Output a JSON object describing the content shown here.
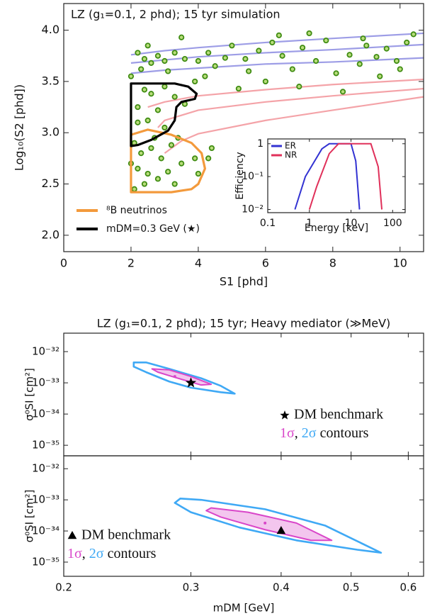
{
  "chart_data": [
    {
      "type": "scatter",
      "title": "LZ (g₁=0.1, 2 phd); 15 tyr simulation",
      "xlabel": "S1 [phd]",
      "ylabel": "Log₁₀(S2 [phd])",
      "xlim": [
        0,
        10.7
      ],
      "ylim": [
        1.84,
        4.26
      ],
      "xticks": [
        0,
        2,
        4,
        6,
        8,
        10
      ],
      "yticks": [
        {
          "value": 2,
          "label": "2.0"
        },
        2.5,
        {
          "value": 3,
          "label": "3.0"
        },
        3.5,
        {
          "value": 4,
          "label": "4.0"
        }
      ],
      "legend": "lower left",
      "bands": [
        {
          "color": "#9d9de6",
          "x": [
            2,
            3,
            4,
            6,
            8,
            10.7
          ],
          "values": [
            3.76,
            3.8,
            3.83,
            3.88,
            3.92,
            3.97
          ]
        },
        {
          "color": "#9d9de6",
          "x": [
            2,
            3,
            4,
            6,
            8,
            10.7
          ],
          "values": [
            3.68,
            3.71,
            3.74,
            3.78,
            3.81,
            3.86
          ]
        },
        {
          "color": "#9d9de6",
          "x": [
            2,
            3,
            4,
            6,
            8,
            10.7
          ],
          "values": [
            3.58,
            3.61,
            3.63,
            3.67,
            3.69,
            3.73
          ]
        },
        {
          "color": "#f4a3a8",
          "x": [
            2.5,
            3,
            4,
            6,
            8,
            10.7
          ],
          "values": [
            3.25,
            3.3,
            3.36,
            3.42,
            3.47,
            3.52
          ]
        },
        {
          "color": "#f4a3a8",
          "x": [
            2.8,
            3,
            4,
            6,
            8,
            10.7
          ],
          "values": [
            3.05,
            3.12,
            3.22,
            3.3,
            3.36,
            3.43
          ]
        },
        {
          "color": "#f4a3a8",
          "x": [
            3,
            3.5,
            4,
            6,
            8,
            10.7
          ],
          "values": [
            2.8,
            2.92,
            2.99,
            3.12,
            3.22,
            3.35
          ]
        }
      ],
      "points": {
        "color": "#3f8c12",
        "fill": "#b9dd7c",
        "x": [
          2.2,
          2.4,
          2.6,
          2.8,
          3.0,
          2.3,
          3.3,
          3.6,
          3.1,
          2.5,
          3.5,
          4.0,
          4.3,
          4.5,
          4.8,
          4.2,
          2.4,
          2.6,
          3.0,
          3.3,
          2.2,
          2.8,
          3.6,
          2.5,
          3.0,
          3.9,
          2.1,
          2.3,
          2.6,
          2.9,
          3.2,
          2.2,
          2.5,
          2.8,
          3.1,
          3.5,
          3.9,
          4.0,
          4.3,
          2.1,
          2.4,
          3.3,
          4.4,
          5.0,
          5.4,
          5.8,
          6.2,
          6.5,
          6.8,
          7.1,
          7.5,
          7.8,
          8.1,
          8.5,
          8.8,
          9.0,
          9.3,
          9.6,
          9.9,
          10.2,
          10.4,
          6.0,
          7.0,
          8.3,
          9.4,
          5.5,
          6.4,
          7.3,
          10.0,
          5.2,
          8.9,
          2.0,
          2.7,
          3.4,
          2.2,
          2.0
        ],
        "values": [
          3.78,
          3.72,
          3.68,
          3.75,
          3.7,
          3.62,
          3.78,
          3.72,
          3.6,
          3.85,
          3.93,
          3.7,
          3.78,
          3.65,
          3.73,
          3.55,
          3.42,
          3.38,
          3.45,
          3.35,
          3.25,
          3.22,
          3.28,
          3.12,
          3.05,
          3.5,
          2.9,
          2.8,
          2.85,
          2.75,
          2.88,
          2.65,
          2.6,
          2.55,
          2.62,
          2.7,
          2.75,
          2.6,
          2.75,
          2.45,
          2.5,
          2.5,
          2.85,
          3.85,
          3.72,
          3.8,
          3.88,
          3.75,
          3.62,
          3.83,
          3.7,
          3.9,
          3.58,
          3.76,
          3.67,
          3.85,
          3.74,
          3.82,
          3.7,
          3.88,
          3.96,
          3.5,
          3.45,
          3.4,
          3.55,
          3.6,
          3.95,
          3.97,
          3.62,
          3.43,
          3.92,
          2.7,
          2.95,
          2.95,
          3.1,
          3.55
        ]
      },
      "series": [
        {
          "name": "⁸B neutrinos",
          "color": "#f39a3c",
          "x": [
            2,
            2,
            2.5,
            3.2,
            3.8,
            4.1,
            4.2,
            4.0,
            3.8,
            3.2,
            2.5
          ],
          "values": [
            2.42,
            2.98,
            3.03,
            2.98,
            2.9,
            2.8,
            2.65,
            2.5,
            2.45,
            2.42,
            2.42
          ]
        },
        {
          "name": "mDM=0.3 GeV (★)",
          "color": "#000000",
          "x": [
            2,
            2,
            3.3,
            3.7,
            3.95,
            3.9,
            3.5,
            3.35,
            3.3,
            3.1,
            2.6,
            2.2
          ],
          "values": [
            2.87,
            3.48,
            3.48,
            3.45,
            3.38,
            3.33,
            3.3,
            3.25,
            3.12,
            3.02,
            2.93,
            2.88
          ]
        }
      ]
    },
    {
      "type": "line",
      "xlabel": "Energy [keV]",
      "ylabel": "Efficiency",
      "log_x": true,
      "log_y": true,
      "xlim": [
        0.1,
        200
      ],
      "ylim": [
        0.008,
        1.4
      ],
      "xticks": [
        0.1,
        1,
        10,
        100
      ],
      "yticks": [
        {
          "value": 0.01,
          "label": "10⁻²"
        },
        {
          "value": 0.1,
          "label": "10⁻¹"
        },
        1
      ],
      "legend": "upper left",
      "series": [
        {
          "name": "ER",
          "color": "#3232d2",
          "x": [
            0.45,
            0.8,
            2,
            3,
            10,
            13,
            16
          ],
          "values": [
            0.01,
            0.1,
            0.7,
            1,
            1,
            0.3,
            0.01
          ]
        },
        {
          "name": "NR",
          "color": "#e0305a",
          "x": [
            1,
            1.5,
            3,
            5,
            30,
            45,
            55
          ],
          "values": [
            0.01,
            0.05,
            0.5,
            1,
            1,
            0.2,
            0.01
          ]
        }
      ]
    },
    {
      "type": "contour",
      "title": "LZ (g₁=0.1, 2 phd); 15 tyr; Heavy mediator (≫MeV)",
      "ylabel": "σ⁰SI [cm²]",
      "log_x": true,
      "log_y": true,
      "xlim": [
        0.2,
        0.63
      ],
      "ylim": [
        4.6e-36,
        3.9e-32
      ],
      "xticks": [
        0.2,
        0.3,
        0.4,
        0.5,
        0.6
      ],
      "xtick_labels": false,
      "yticks": [
        {
          "value": 1e-35,
          "label": "10⁻³⁵"
        },
        {
          "value": 1e-34,
          "label": "10⁻³⁴"
        },
        {
          "value": 1e-33,
          "label": "10⁻³³"
        },
        {
          "value": 1e-32,
          "label": "10⁻³²"
        }
      ],
      "legend": "lower right",
      "series": [
        {
          "name": "1σ",
          "color": "#d946c9",
          "x": [
            0.265,
            0.28,
            0.3,
            0.32,
            0.31,
            0.285,
            0.27
          ],
          "values": [
            2.8e-33,
            2.6e-33,
            1.6e-33,
            9e-34,
            8.5e-34,
            1.5e-33,
            2.2e-33
          ]
        },
        {
          "name": "2σ",
          "color": "#3fa9f5",
          "x": [
            0.25,
            0.26,
            0.28,
            0.31,
            0.33,
            0.345,
            0.33,
            0.3,
            0.28,
            0.26,
            0.25
          ],
          "values": [
            4.5e-33,
            4.5e-33,
            2.8e-33,
            1.4e-33,
            8e-34,
            4.5e-34,
            5e-34,
            7e-34,
            1.1e-33,
            2.2e-33,
            3.3e-33
          ]
        }
      ],
      "best_fit": {
        "x": 0.285,
        "value": 1.6e-33,
        "color": "#d946c9"
      },
      "benchmark": {
        "name": "DM benchmark",
        "marker": "star",
        "x": 0.3,
        "value": 1e-33
      },
      "legend_joiner": ", ",
      "legend_suffix": " contours"
    },
    {
      "type": "contour",
      "xlabel": "mDM [GeV]",
      "ylabel": "σ⁰SI [cm²]",
      "log_x": true,
      "log_y": true,
      "xlim": [
        0.2,
        0.63
      ],
      "ylim": [
        3.5e-36,
        2.6e-32
      ],
      "xticks": [
        0.2,
        0.3,
        0.4,
        0.5,
        0.6
      ],
      "xtick_labels": true,
      "yticks": [
        {
          "value": 1e-35,
          "label": "10⁻³⁵"
        },
        {
          "value": 1e-34,
          "label": "10⁻³⁴"
        },
        {
          "value": 1e-33,
          "label": "10⁻³³"
        },
        {
          "value": 1e-32,
          "label": "10⁻³²"
        }
      ],
      "legend": "lower left",
      "series": [
        {
          "name": "1σ",
          "color": "#d946c9",
          "x": [
            0.32,
            0.36,
            0.42,
            0.47,
            0.44,
            0.38,
            0.33,
            0.315
          ],
          "values": [
            5.5e-34,
            4e-34,
            1.8e-34,
            5e-35,
            5e-35,
            1.1e-34,
            2.8e-34,
            4.5e-34
          ]
        },
        {
          "name": "2σ",
          "color": "#3fa9f5",
          "x": [
            0.29,
            0.31,
            0.38,
            0.46,
            0.55,
            0.51,
            0.42,
            0.35,
            0.3,
            0.285
          ],
          "values": [
            1.1e-33,
            1e-33,
            5e-34,
            1.5e-34,
            2e-35,
            2.5e-35,
            5e-35,
            1.3e-34,
            4e-34,
            8e-34
          ]
        }
      ],
      "best_fit": {
        "x": 0.38,
        "value": 1.8e-34,
        "color": "#d946c9"
      },
      "benchmark": {
        "name": "DM benchmark",
        "marker": "triangle",
        "x": 0.4,
        "value": 1e-34
      },
      "legend_joiner": ", ",
      "legend_suffix": " contours"
    }
  ]
}
